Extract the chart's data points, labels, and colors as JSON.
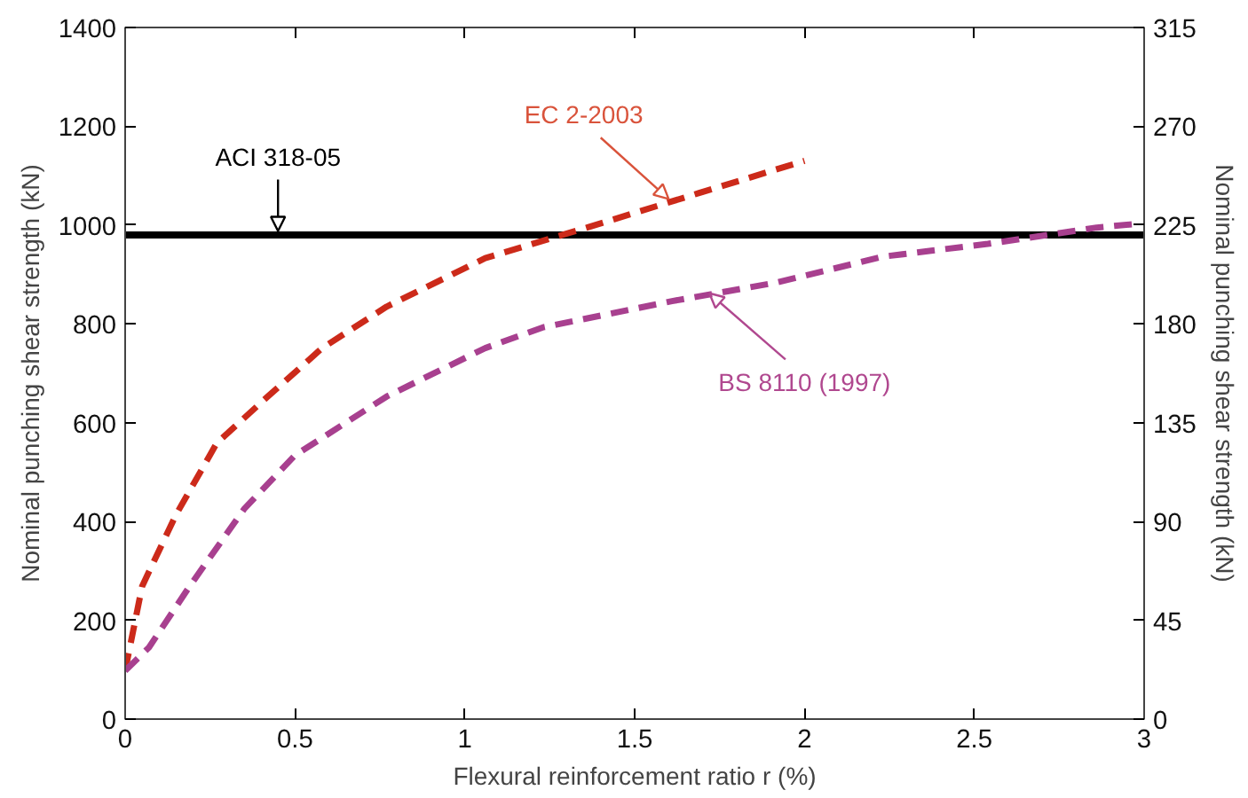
{
  "chart_data": {
    "type": "line",
    "xlabel": "Flexural reinforcement ratio r (%)",
    "ylabel": "Nominal punching shear strength (kN)",
    "y2label": "Nominal punching shear strength (kN)",
    "xlim": [
      0,
      3
    ],
    "xticks": [
      0,
      0.5,
      1,
      1.5,
      2,
      2.5,
      3
    ],
    "ylim": [
      0,
      1400
    ],
    "yticks": [
      0,
      200,
      400,
      600,
      800,
      1000,
      1200,
      1400
    ],
    "y2lim": [
      0,
      315
    ],
    "y2ticks": [
      0,
      45,
      90,
      135,
      180,
      225,
      270,
      315
    ],
    "grid": false,
    "marker": "none",
    "series": [
      {
        "color": "#000000",
        "line_style": "solid",
        "x": [
          0,
          3
        ],
        "values": [
          980,
          980
        ]
      },
      {
        "color": "#cc2a1a",
        "line_style": "dashed",
        "x": [
          0,
          0.05,
          0.15,
          0.27,
          0.42,
          0.58,
          0.77,
          1.06,
          1.36,
          1.69,
          2.0
        ],
        "values": [
          98,
          269,
          414,
          559,
          653,
          751,
          835,
          933,
          995,
          1065,
          1130
        ]
      },
      {
        "color": "#a8408f",
        "line_style": "dashed",
        "x": [
          0,
          0.07,
          0.19,
          0.35,
          0.5,
          0.77,
          1.06,
          1.23,
          1.61,
          1.92,
          2.23,
          2.54,
          2.86,
          2.97
        ],
        "values": [
          98,
          145,
          269,
          425,
          534,
          653,
          751,
          793,
          846,
          884,
          936,
          962,
          995,
          1002
        ]
      }
    ],
    "annotations": [
      {
        "text": "ACI 318-05",
        "x": 0.45,
        "y": 980
      },
      {
        "text": "EC 2-2003",
        "x": 1.6,
        "y": 1045
      },
      {
        "text": "BS 8110 (1997)",
        "x": 1.72,
        "y": 870
      }
    ]
  }
}
